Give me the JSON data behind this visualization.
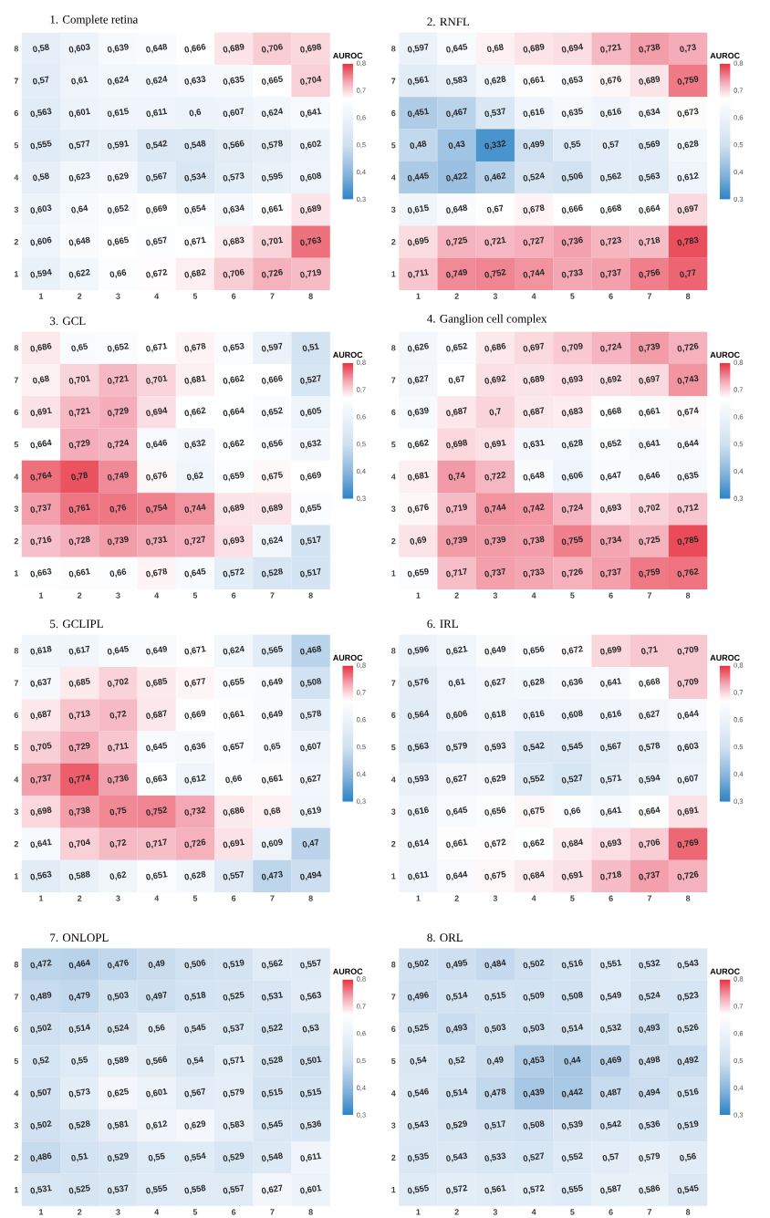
{
  "chart_data": [
    {
      "type": "heatmap",
      "title": "1. Complete retina",
      "clabel": "AUROC",
      "categories": [
        "1",
        "2",
        "3",
        "4",
        "5",
        "6",
        "7",
        "8"
      ],
      "y_categories": [
        "8",
        "7",
        "6",
        "5",
        "4",
        "3",
        "2",
        "1"
      ],
      "clim": [
        0.3,
        0.8
      ],
      "cticks": [
        {
          "value": 0.3,
          "label": "0,3"
        },
        {
          "value": 0.4,
          "label": "0,4"
        },
        {
          "value": 0.5,
          "label": "0,5"
        },
        {
          "value": 0.6,
          "label": "0,6"
        },
        {
          "value": 0.7,
          "label": "0,7"
        },
        {
          "value": 0.8,
          "label": "0,8"
        }
      ],
      "cells": [
        [
          0.58,
          0.603,
          0.639,
          0.648,
          0.666,
          0.689,
          0.706,
          0.698
        ],
        [
          0.57,
          0.61,
          0.624,
          0.624,
          0.633,
          0.635,
          0.665,
          0.704
        ],
        [
          0.563,
          0.601,
          0.615,
          0.611,
          0.6,
          0.607,
          0.624,
          0.641
        ],
        [
          0.555,
          0.577,
          0.591,
          0.542,
          0.548,
          0.566,
          0.578,
          0.602
        ],
        [
          0.58,
          0.623,
          0.629,
          0.567,
          0.534,
          0.573,
          0.595,
          0.608
        ],
        [
          0.603,
          0.64,
          0.652,
          0.669,
          0.654,
          0.634,
          0.661,
          0.689
        ],
        [
          0.606,
          0.648,
          0.665,
          0.657,
          0.671,
          0.683,
          0.701,
          0.763
        ],
        [
          0.594,
          0.622,
          0.66,
          0.672,
          0.682,
          0.706,
          0.726,
          0.719
        ]
      ],
      "cell_labels": [
        [
          "0,58",
          "0,603",
          "0,639",
          "0,648",
          "0,666",
          "0,689",
          "0,706",
          "0,698"
        ],
        [
          "0,57",
          "0,61",
          "0,624",
          "0,624",
          "0,633",
          "0,635",
          "0,665",
          "0,704"
        ],
        [
          "0,563",
          "0,601",
          "0,615",
          "0,611",
          "0,6",
          "0,607",
          "0,624",
          "0,641"
        ],
        [
          "0,555",
          "0,577",
          "0,591",
          "0,542",
          "0,548",
          "0,566",
          "0,578",
          "0,602"
        ],
        [
          "0,58",
          "0,623",
          "0,629",
          "0,567",
          "0,534",
          "0,573",
          "0,595",
          "0,608"
        ],
        [
          "0,603",
          "0,64",
          "0,652",
          "0,669",
          "0,654",
          "0,634",
          "0,661",
          "0,689"
        ],
        [
          "0,606",
          "0,648",
          "0,665",
          "0,657",
          "0,671",
          "0,683",
          "0,701",
          "0,763"
        ],
        [
          "0,594",
          "0,622",
          "0,66",
          "0,672",
          "0,682",
          "0,706",
          "0,726",
          "0,719"
        ]
      ]
    },
    {
      "type": "heatmap",
      "title": "2. RNFL",
      "clabel": "AUROC",
      "categories": [
        "1",
        "2",
        "3",
        "4",
        "5",
        "6",
        "7",
        "8"
      ],
      "y_categories": [
        "8",
        "7",
        "6",
        "5",
        "4",
        "3",
        "2",
        "1"
      ],
      "clim": [
        0.3,
        0.8
      ],
      "cticks": [
        {
          "value": 0.3,
          "label": "0,3"
        },
        {
          "value": 0.4,
          "label": "0,4"
        },
        {
          "value": 0.5,
          "label": "0,5"
        },
        {
          "value": 0.6,
          "label": "0,6"
        },
        {
          "value": 0.7,
          "label": "0,7"
        },
        {
          "value": 0.8,
          "label": "0,8"
        }
      ],
      "cells": [
        [
          0.597,
          0.645,
          0.68,
          0.689,
          0.694,
          0.721,
          0.738,
          0.73
        ],
        [
          0.561,
          0.583,
          0.628,
          0.661,
          0.653,
          0.676,
          0.689,
          0.759
        ],
        [
          0.451,
          0.467,
          0.537,
          0.616,
          0.635,
          0.616,
          0.634,
          0.673
        ],
        [
          0.48,
          0.43,
          0.332,
          0.499,
          0.55,
          0.57,
          0.569,
          0.628
        ],
        [
          0.445,
          0.422,
          0.462,
          0.524,
          0.506,
          0.562,
          0.563,
          0.612
        ],
        [
          0.615,
          0.648,
          0.67,
          0.678,
          0.666,
          0.668,
          0.664,
          0.697
        ],
        [
          0.695,
          0.725,
          0.721,
          0.727,
          0.736,
          0.723,
          0.718,
          0.783
        ],
        [
          0.711,
          0.749,
          0.752,
          0.744,
          0.733,
          0.737,
          0.756,
          0.77
        ]
      ],
      "cell_labels": [
        [
          "0,597",
          "0,645",
          "0,68",
          "0,689",
          "0,694",
          "0,721",
          "0,738",
          "0,73"
        ],
        [
          "0,561",
          "0,583",
          "0,628",
          "0,661",
          "0,653",
          "0,676",
          "0,689",
          "0,759"
        ],
        [
          "0,451",
          "0,467",
          "0,537",
          "0,616",
          "0,635",
          "0,616",
          "0,634",
          "0,673"
        ],
        [
          "0,48",
          "0,43",
          "0,332",
          "0,499",
          "0,55",
          "0,57",
          "0,569",
          "0,628"
        ],
        [
          "0,445",
          "0,422",
          "0,462",
          "0,524",
          "0,506",
          "0,562",
          "0,563",
          "0,612"
        ],
        [
          "0,615",
          "0,648",
          "0,67",
          "0,678",
          "0,666",
          "0,668",
          "0,664",
          "0,697"
        ],
        [
          "0,695",
          "0,725",
          "0,721",
          "0,727",
          "0,736",
          "0,723",
          "0,718",
          "0,783"
        ],
        [
          "0,711",
          "0,749",
          "0,752",
          "0,744",
          "0,733",
          "0,737",
          "0,756",
          "0,77"
        ]
      ]
    },
    {
      "type": "heatmap",
      "title": "3. GCL",
      "clabel": "AUROC",
      "categories": [
        "1",
        "2",
        "3",
        "4",
        "5",
        "6",
        "7",
        "8"
      ],
      "y_categories": [
        "8",
        "7",
        "6",
        "5",
        "4",
        "3",
        "2",
        "1"
      ],
      "clim": [
        0.3,
        0.8
      ],
      "cticks": [
        {
          "value": 0.3,
          "label": "0,3"
        },
        {
          "value": 0.4,
          "label": "0,4"
        },
        {
          "value": 0.5,
          "label": "0,5"
        },
        {
          "value": 0.6,
          "label": "0,6"
        },
        {
          "value": 0.7,
          "label": "0,7"
        },
        {
          "value": 0.8,
          "label": "0,8"
        }
      ],
      "cells": [
        [
          0.686,
          0.65,
          0.652,
          0.671,
          0.678,
          0.653,
          0.597,
          0.51
        ],
        [
          0.68,
          0.701,
          0.721,
          0.701,
          0.681,
          0.662,
          0.666,
          0.527
        ],
        [
          0.691,
          0.721,
          0.729,
          0.694,
          0.662,
          0.664,
          0.652,
          0.605
        ],
        [
          0.664,
          0.729,
          0.724,
          0.646,
          0.632,
          0.662,
          0.656,
          0.632
        ],
        [
          0.764,
          0.78,
          0.749,
          0.676,
          0.62,
          0.659,
          0.675,
          0.669
        ],
        [
          0.737,
          0.761,
          0.76,
          0.754,
          0.744,
          0.689,
          0.689,
          0.655
        ],
        [
          0.716,
          0.728,
          0.739,
          0.731,
          0.727,
          0.693,
          0.624,
          0.517
        ],
        [
          0.663,
          0.661,
          0.66,
          0.678,
          0.645,
          0.572,
          0.528,
          0.517
        ]
      ],
      "cell_labels": [
        [
          "0,686",
          "0,65",
          "0,652",
          "0,671",
          "0,678",
          "0,653",
          "0,597",
          "0,51"
        ],
        [
          "0,68",
          "0,701",
          "0,721",
          "0,701",
          "0,681",
          "0,662",
          "0,666",
          "0,527"
        ],
        [
          "0,691",
          "0,721",
          "0,729",
          "0,694",
          "0,662",
          "0,664",
          "0,652",
          "0,605"
        ],
        [
          "0,664",
          "0,729",
          "0,724",
          "0,646",
          "0,632",
          "0,662",
          "0,656",
          "0,632"
        ],
        [
          "0,764",
          "0,78",
          "0,749",
          "0,676",
          "0,62",
          "0,659",
          "0,675",
          "0,669"
        ],
        [
          "0,737",
          "0,761",
          "0,76",
          "0,754",
          "0,744",
          "0,689",
          "0,689",
          "0,655"
        ],
        [
          "0,716",
          "0,728",
          "0,739",
          "0,731",
          "0,727",
          "0,693",
          "0,624",
          "0,517"
        ],
        [
          "0,663",
          "0,661",
          "0,66",
          "0,678",
          "0,645",
          "0,572",
          "0,528",
          "0,517"
        ]
      ]
    },
    {
      "type": "heatmap",
      "title": "4. Ganglion cell complex",
      "clabel": "AUROC",
      "categories": [
        "1",
        "2",
        "3",
        "4",
        "5",
        "6",
        "7",
        "8"
      ],
      "y_categories": [
        "8",
        "7",
        "6",
        "5",
        "4",
        "3",
        "2",
        "1"
      ],
      "clim": [
        0.3,
        0.8
      ],
      "cticks": [
        {
          "value": 0.3,
          "label": "0,3"
        },
        {
          "value": 0.4,
          "label": "0,4"
        },
        {
          "value": 0.5,
          "label": "0,5"
        },
        {
          "value": 0.6,
          "label": "0,6"
        },
        {
          "value": 0.7,
          "label": "0,7"
        },
        {
          "value": 0.8,
          "label": "0,8"
        }
      ],
      "cells": [
        [
          0.626,
          0.652,
          0.686,
          0.697,
          0.709,
          0.724,
          0.739,
          0.726
        ],
        [
          0.627,
          0.67,
          0.692,
          0.689,
          0.693,
          0.692,
          0.697,
          0.743
        ],
        [
          0.639,
          0.687,
          0.7,
          0.687,
          0.683,
          0.668,
          0.661,
          0.674
        ],
        [
          0.662,
          0.698,
          0.691,
          0.631,
          0.628,
          0.652,
          0.641,
          0.644
        ],
        [
          0.681,
          0.74,
          0.722,
          0.648,
          0.606,
          0.647,
          0.646,
          0.635
        ],
        [
          0.676,
          0.719,
          0.744,
          0.742,
          0.724,
          0.693,
          0.702,
          0.712
        ],
        [
          0.69,
          0.739,
          0.739,
          0.738,
          0.755,
          0.734,
          0.725,
          0.785
        ],
        [
          0.659,
          0.717,
          0.737,
          0.733,
          0.726,
          0.737,
          0.759,
          0.762
        ]
      ],
      "cell_labels": [
        [
          "0,626",
          "0,652",
          "0,686",
          "0,697",
          "0,709",
          "0,724",
          "0,739",
          "0,726"
        ],
        [
          "0,627",
          "0,67",
          "0,692",
          "0,689",
          "0,693",
          "0,692",
          "0,697",
          "0,743"
        ],
        [
          "0,639",
          "0,687",
          "0,7",
          "0,687",
          "0,683",
          "0,668",
          "0,661",
          "0,674"
        ],
        [
          "0,662",
          "0,698",
          "0,691",
          "0,631",
          "0,628",
          "0,652",
          "0,641",
          "0,644"
        ],
        [
          "0,681",
          "0,74",
          "0,722",
          "0,648",
          "0,606",
          "0,647",
          "0,646",
          "0,635"
        ],
        [
          "0,676",
          "0,719",
          "0,744",
          "0,742",
          "0,724",
          "0,693",
          "0,702",
          "0,712"
        ],
        [
          "0,69",
          "0,739",
          "0,739",
          "0,738",
          "0,755",
          "0,734",
          "0,725",
          "0,785"
        ],
        [
          "0,659",
          "0,717",
          "0,737",
          "0,733",
          "0,726",
          "0,737",
          "0,759",
          "0,762"
        ]
      ]
    },
    {
      "type": "heatmap",
      "title": "5. GCLIPL",
      "clabel": "AUROC",
      "categories": [
        "1",
        "2",
        "3",
        "4",
        "5",
        "6",
        "7",
        "8"
      ],
      "y_categories": [
        "8",
        "7",
        "6",
        "5",
        "4",
        "3",
        "2",
        "1"
      ],
      "clim": [
        0.3,
        0.8
      ],
      "cticks": [
        {
          "value": 0.3,
          "label": "0,3"
        },
        {
          "value": 0.4,
          "label": "0,4"
        },
        {
          "value": 0.5,
          "label": "0,5"
        },
        {
          "value": 0.6,
          "label": "0,6"
        },
        {
          "value": 0.7,
          "label": "0,7"
        },
        {
          "value": 0.8,
          "label": "0,8"
        }
      ],
      "cells": [
        [
          0.618,
          0.617,
          0.645,
          0.649,
          0.671,
          0.624,
          0.565,
          0.468
        ],
        [
          0.637,
          0.685,
          0.702,
          0.685,
          0.677,
          0.655,
          0.649,
          0.508
        ],
        [
          0.687,
          0.713,
          0.72,
          0.687,
          0.669,
          0.661,
          0.649,
          0.578
        ],
        [
          0.705,
          0.729,
          0.711,
          0.645,
          0.636,
          0.657,
          0.65,
          0.607
        ],
        [
          0.737,
          0.774,
          0.736,
          0.663,
          0.612,
          0.66,
          0.661,
          0.627
        ],
        [
          0.698,
          0.738,
          0.75,
          0.752,
          0.732,
          0.686,
          0.68,
          0.619
        ],
        [
          0.641,
          0.704,
          0.72,
          0.717,
          0.726,
          0.691,
          0.609,
          0.47
        ],
        [
          0.563,
          0.588,
          0.62,
          0.651,
          0.628,
          0.557,
          0.473,
          0.494
        ]
      ],
      "cell_labels": [
        [
          "0,618",
          "0,617",
          "0,645",
          "0,649",
          "0,671",
          "0,624",
          "0,565",
          "0,468"
        ],
        [
          "0,637",
          "0,685",
          "0,702",
          "0,685",
          "0,677",
          "0,655",
          "0,649",
          "0,508"
        ],
        [
          "0,687",
          "0,713",
          "0,72",
          "0,687",
          "0,669",
          "0,661",
          "0,649",
          "0,578"
        ],
        [
          "0,705",
          "0,729",
          "0,711",
          "0,645",
          "0,636",
          "0,657",
          "0,65",
          "0,607"
        ],
        [
          "0,737",
          "0,774",
          "0,736",
          "0,663",
          "0,612",
          "0,66",
          "0,661",
          "0,627"
        ],
        [
          "0,698",
          "0,738",
          "0,75",
          "0,752",
          "0,732",
          "0,686",
          "0,68",
          "0,619"
        ],
        [
          "0,641",
          "0,704",
          "0,72",
          "0,717",
          "0,726",
          "0,691",
          "0,609",
          "0,47"
        ],
        [
          "0,563",
          "0,588",
          "0,62",
          "0,651",
          "0,628",
          "0,557",
          "0,473",
          "0,494"
        ]
      ]
    },
    {
      "type": "heatmap",
      "title": "6. IRL",
      "clabel": "AUROC",
      "categories": [
        "1",
        "2",
        "3",
        "4",
        "5",
        "6",
        "7",
        "8"
      ],
      "y_categories": [
        "8",
        "7",
        "6",
        "5",
        "4",
        "3",
        "2",
        "1"
      ],
      "clim": [
        0.3,
        0.8
      ],
      "cticks": [
        {
          "value": 0.3,
          "label": "0,3"
        },
        {
          "value": 0.4,
          "label": "0,4"
        },
        {
          "value": 0.5,
          "label": "0,5"
        },
        {
          "value": 0.6,
          "label": "0,6"
        },
        {
          "value": 0.7,
          "label": "0,7"
        },
        {
          "value": 0.8,
          "label": "0,8"
        }
      ],
      "cells": [
        [
          0.596,
          0.621,
          0.649,
          0.656,
          0.672,
          0.699,
          0.71,
          0.709
        ],
        [
          0.576,
          0.61,
          0.627,
          0.628,
          0.636,
          0.641,
          0.668,
          0.709
        ],
        [
          0.564,
          0.606,
          0.618,
          0.616,
          0.608,
          0.616,
          0.627,
          0.644
        ],
        [
          0.563,
          0.579,
          0.593,
          0.542,
          0.545,
          0.567,
          0.578,
          0.603
        ],
        [
          0.593,
          0.627,
          0.629,
          0.552,
          0.527,
          0.571,
          0.594,
          0.607
        ],
        [
          0.616,
          0.645,
          0.656,
          0.675,
          0.66,
          0.641,
          0.664,
          0.691
        ],
        [
          0.614,
          0.661,
          0.672,
          0.662,
          0.684,
          0.693,
          0.706,
          0.769
        ],
        [
          0.611,
          0.644,
          0.675,
          0.684,
          0.691,
          0.718,
          0.737,
          0.726
        ]
      ],
      "cell_labels": [
        [
          "0,596",
          "0,621",
          "0,649",
          "0,656",
          "0,672",
          "0,699",
          "0,71",
          "0,709"
        ],
        [
          "0,576",
          "0,61",
          "0,627",
          "0,628",
          "0,636",
          "0,641",
          "0,668",
          "0,709"
        ],
        [
          "0,564",
          "0,606",
          "0,618",
          "0,616",
          "0,608",
          "0,616",
          "0,627",
          "0,644"
        ],
        [
          "0,563",
          "0,579",
          "0,593",
          "0,542",
          "0,545",
          "0,567",
          "0,578",
          "0,603"
        ],
        [
          "0,593",
          "0,627",
          "0,629",
          "0,552",
          "0,527",
          "0,571",
          "0,594",
          "0,607"
        ],
        [
          "0,616",
          "0,645",
          "0,656",
          "0,675",
          "0,66",
          "0,641",
          "0,664",
          "0,691"
        ],
        [
          "0,614",
          "0,661",
          "0,672",
          "0,662",
          "0,684",
          "0,693",
          "0,706",
          "0,769"
        ],
        [
          "0,611",
          "0,644",
          "0,675",
          "0,684",
          "0,691",
          "0,718",
          "0,737",
          "0,726"
        ]
      ]
    },
    {
      "type": "heatmap",
      "title": "7. ONLOPL",
      "clabel": "AUROC",
      "categories": [
        "1",
        "2",
        "3",
        "4",
        "5",
        "6",
        "7",
        "8"
      ],
      "y_categories": [
        "8",
        "7",
        "6",
        "5",
        "4",
        "3",
        "2",
        "1"
      ],
      "clim": [
        0.3,
        0.8
      ],
      "cticks": [
        {
          "value": 0.3,
          "label": "0,3"
        },
        {
          "value": 0.4,
          "label": "0,4"
        },
        {
          "value": 0.5,
          "label": "0,5"
        },
        {
          "value": 0.6,
          "label": "0,6"
        },
        {
          "value": 0.7,
          "label": "0,7"
        },
        {
          "value": 0.8,
          "label": "0,8"
        }
      ],
      "cells": [
        [
          0.472,
          0.464,
          0.476,
          0.49,
          0.506,
          0.519,
          0.562,
          0.557
        ],
        [
          0.489,
          0.479,
          0.503,
          0.497,
          0.518,
          0.525,
          0.531,
          0.563
        ],
        [
          0.502,
          0.514,
          0.524,
          0.56,
          0.545,
          0.537,
          0.522,
          0.53
        ],
        [
          0.52,
          0.55,
          0.589,
          0.566,
          0.54,
          0.571,
          0.528,
          0.501
        ],
        [
          0.507,
          0.573,
          0.625,
          0.601,
          0.567,
          0.579,
          0.515,
          0.515
        ],
        [
          0.502,
          0.528,
          0.581,
          0.612,
          0.629,
          0.583,
          0.545,
          0.536
        ],
        [
          0.486,
          0.51,
          0.529,
          0.55,
          0.554,
          0.529,
          0.548,
          0.611
        ],
        [
          0.531,
          0.525,
          0.537,
          0.555,
          0.558,
          0.557,
          0.627,
          0.601
        ]
      ],
      "cell_labels": [
        [
          "0,472",
          "0,464",
          "0,476",
          "0,49",
          "0,506",
          "0,519",
          "0,562",
          "0,557"
        ],
        [
          "0,489",
          "0,479",
          "0,503",
          "0,497",
          "0,518",
          "0,525",
          "0,531",
          "0,563"
        ],
        [
          "0,502",
          "0,514",
          "0,524",
          "0,56",
          "0,545",
          "0,537",
          "0,522",
          "0,53"
        ],
        [
          "0,52",
          "0,55",
          "0,589",
          "0,566",
          "0,54",
          "0,571",
          "0,528",
          "0,501"
        ],
        [
          "0,507",
          "0,573",
          "0,625",
          "0,601",
          "0,567",
          "0,579",
          "0,515",
          "0,515"
        ],
        [
          "0,502",
          "0,528",
          "0,581",
          "0,612",
          "0,629",
          "0,583",
          "0,545",
          "0,536"
        ],
        [
          "0,486",
          "0,51",
          "0,529",
          "0,55",
          "0,554",
          "0,529",
          "0,548",
          "0,611"
        ],
        [
          "0,531",
          "0,525",
          "0,537",
          "0,555",
          "0,558",
          "0,557",
          "0,627",
          "0,601"
        ]
      ]
    },
    {
      "type": "heatmap",
      "title": "8. ORL",
      "clabel": "AUROC",
      "categories": [
        "1",
        "2",
        "3",
        "4",
        "5",
        "6",
        "7",
        "8"
      ],
      "y_categories": [
        "8",
        "7",
        "6",
        "5",
        "4",
        "3",
        "2",
        "1"
      ],
      "clim": [
        0.3,
        0.8
      ],
      "cticks": [
        {
          "value": 0.3,
          "label": "0,3"
        },
        {
          "value": 0.4,
          "label": "0,4"
        },
        {
          "value": 0.5,
          "label": "0,5"
        },
        {
          "value": 0.6,
          "label": "0,6"
        },
        {
          "value": 0.7,
          "label": "0,7"
        },
        {
          "value": 0.8,
          "label": "0,8"
        }
      ],
      "cells": [
        [
          0.502,
          0.495,
          0.484,
          0.502,
          0.516,
          0.551,
          0.532,
          0.543
        ],
        [
          0.496,
          0.514,
          0.515,
          0.509,
          0.508,
          0.549,
          0.524,
          0.523
        ],
        [
          0.525,
          0.493,
          0.503,
          0.503,
          0.514,
          0.532,
          0.493,
          0.526
        ],
        [
          0.54,
          0.52,
          0.49,
          0.453,
          0.44,
          0.469,
          0.498,
          0.492
        ],
        [
          0.546,
          0.514,
          0.478,
          0.439,
          0.442,
          0.487,
          0.494,
          0.516
        ],
        [
          0.543,
          0.529,
          0.517,
          0.508,
          0.539,
          0.542,
          0.536,
          0.519
        ],
        [
          0.535,
          0.543,
          0.533,
          0.527,
          0.552,
          0.57,
          0.579,
          0.56
        ],
        [
          0.555,
          0.572,
          0.561,
          0.572,
          0.555,
          0.587,
          0.586,
          0.545
        ]
      ],
      "cell_labels": [
        [
          "0,502",
          "0,495",
          "0,484",
          "0,502",
          "0,516",
          "0,551",
          "0,532",
          "0,543"
        ],
        [
          "0,496",
          "0,514",
          "0,515",
          "0,509",
          "0,508",
          "0,549",
          "0,524",
          "0,523"
        ],
        [
          "0,525",
          "0,493",
          "0,503",
          "0,503",
          "0,514",
          "0,532",
          "0,493",
          "0,526"
        ],
        [
          "0,54",
          "0,52",
          "0,49",
          "0,453",
          "0,44",
          "0,469",
          "0,498",
          "0,492"
        ],
        [
          "0,546",
          "0,514",
          "0,478",
          "0,439",
          "0,442",
          "0,487",
          "0,494",
          "0,516"
        ],
        [
          "0,543",
          "0,529",
          "0,517",
          "0,508",
          "0,539",
          "0,542",
          "0,536",
          "0,519"
        ],
        [
          "0,535",
          "0,543",
          "0,533",
          "0,527",
          "0,552",
          "0,57",
          "0,579",
          "0,56"
        ],
        [
          "0,555",
          "0,572",
          "0,561",
          "0,572",
          "0,555",
          "0,587",
          "0,586",
          "0,545"
        ]
      ]
    }
  ]
}
